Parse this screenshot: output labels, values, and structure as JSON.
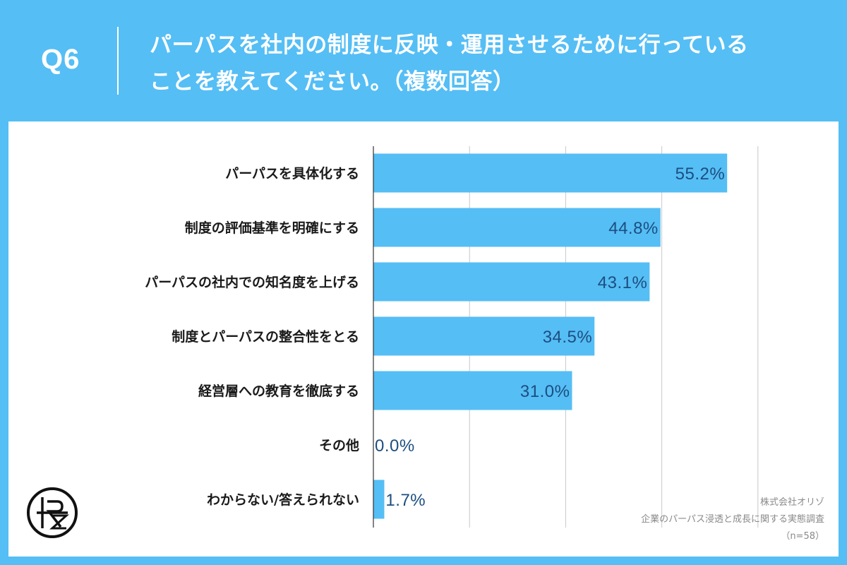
{
  "header": {
    "q_label": "Q6",
    "question_line1": "パーパスを社内の制度に反映・運用させるために行っている",
    "question_line2": "ことを教えてください。（複数回答）"
  },
  "chart_data": {
    "type": "bar",
    "orientation": "horizontal",
    "categories": [
      "パーパスを具体化する",
      "制度の評価基準を明確にする",
      "パーパスの社内での知名度を上げる",
      "制度とパーパスの整合性をとる",
      "経営層への教育を徹底する",
      "その他",
      "わからない/答えられない"
    ],
    "values": [
      55.2,
      44.8,
      43.1,
      34.5,
      31.0,
      0.0,
      1.7
    ],
    "value_labels": [
      "55.2%",
      "44.8%",
      "43.1%",
      "34.5%",
      "31.0%",
      "0.0%",
      "1.7%"
    ],
    "xlim": [
      0,
      60
    ],
    "grid": true,
    "bar_color": "#55bef5",
    "label_color": "#1c4e80"
  },
  "source": {
    "company": "株式会社オリゾ",
    "survey": "企業のパーパス浸透と成長に関する実態調査",
    "sample": "（n=58）"
  },
  "colors": {
    "background": "#55bef5",
    "panel": "#ffffff"
  }
}
